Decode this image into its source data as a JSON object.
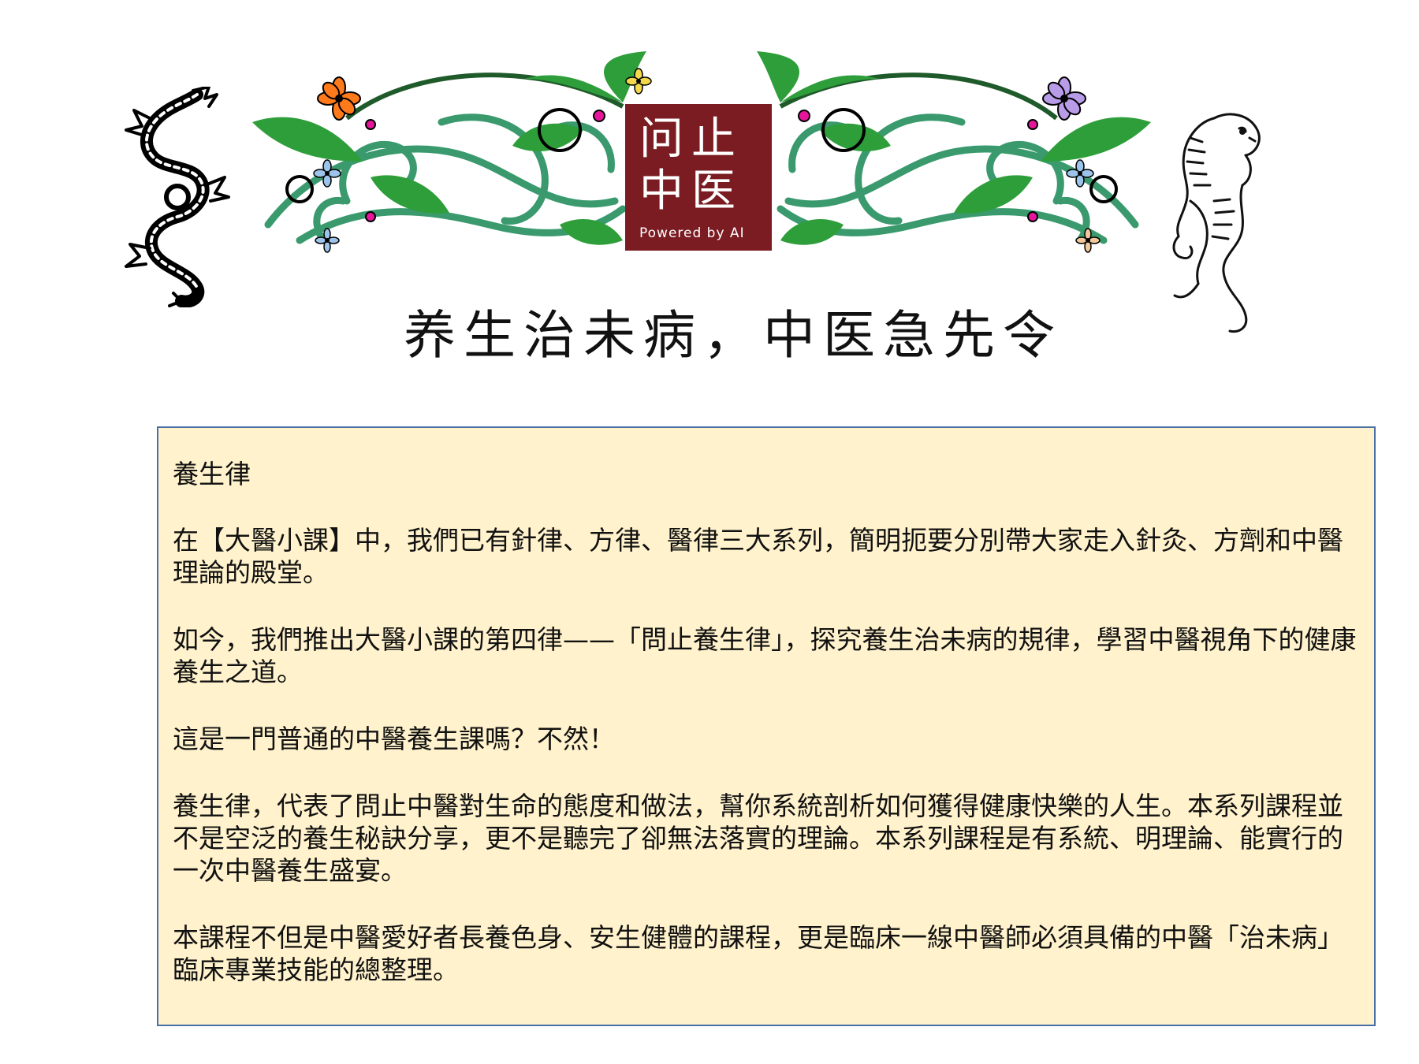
{
  "header": {
    "logo": {
      "line1": "问止",
      "line2": "中医",
      "subtitle": "Powered by AI"
    },
    "slogan": "养生治未病，中医急先令",
    "icons": [
      "dragon-icon",
      "tiger-icon",
      "floral-vine-ornament"
    ]
  },
  "content": {
    "title": "養生律",
    "paragraphs": [
      "在【大醫小課】中，我們已有針律、方律、醫律三大系列，簡明扼要分別帶大家走入針灸、方劑和中醫理論的殿堂。",
      "如今，我們推出大醫小課的第四律——「問止養生律」，探究養生治未病的規律，學習中醫視角下的健康養生之道。",
      "這是一門普通的中醫養生課嗎？不然！",
      "養生律，代表了問止中醫對生命的態度和做法，幫你系統剖析如何獲得健康快樂的人生。本系列課程並不是空泛的養生秘訣分享，更不是聽完了卻無法落實的理論。本系列課程是有系統、明理論、能實行的一次中醫養生盛宴。",
      "本課程不但是中醫愛好者長養色身、安生健體的課程，更是臨床一線中醫師必須具備的中醫「治未病」臨床專業技能的總整理。"
    ]
  },
  "colors": {
    "logo_bg": "#7a1c22",
    "box_bg": "#fff2cc",
    "box_border": "#4a6fa5",
    "leaf_green": "#2e9e3a",
    "vine_teal": "#3a9a6e"
  }
}
